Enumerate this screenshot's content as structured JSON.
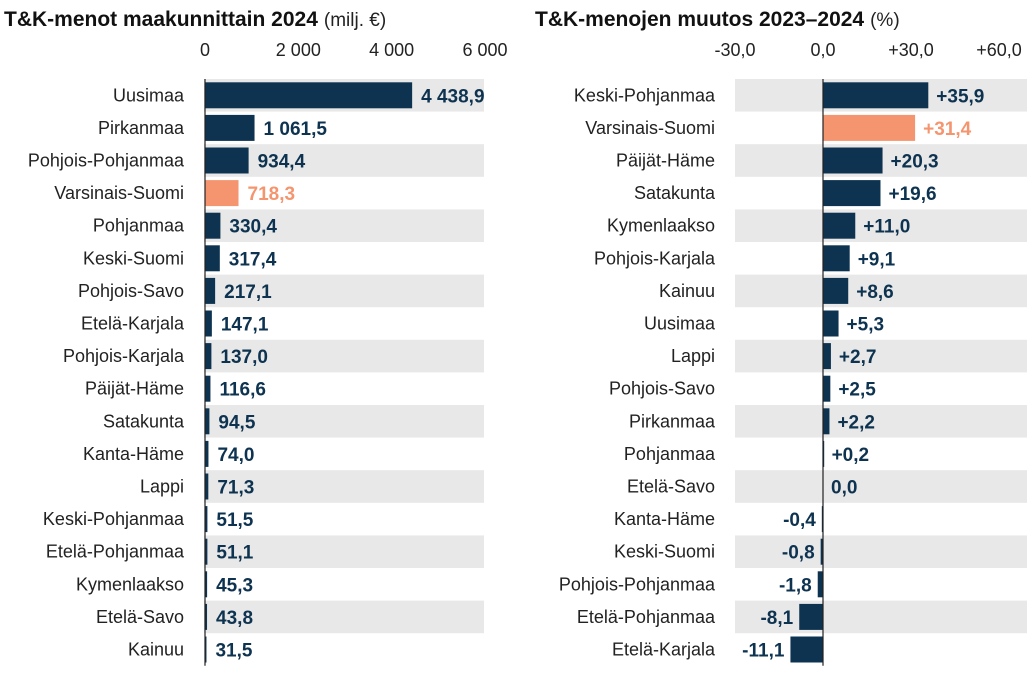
{
  "colors": {
    "bar": "#0e3350",
    "highlight": "#f4956f",
    "band": "#e8e8e8",
    "text": "#222222",
    "axis": "#222222"
  },
  "chart_data": [
    {
      "type": "bar",
      "orientation": "horizontal",
      "title": "T&K-menot maakunnittain 2024",
      "unit": "(milj. €)",
      "xlim": [
        0,
        6000
      ],
      "ticks": [
        0,
        2000,
        4000,
        6000
      ],
      "tick_labels": [
        "0",
        "2 000",
        "4 000",
        "6 000"
      ],
      "highlight": "Varsinais-Suomi",
      "categories": [
        "Uusimaa",
        "Pirkanmaa",
        "Pohjois-Pohjanmaa",
        "Varsinais-Suomi",
        "Pohjanmaa",
        "Keski-Suomi",
        "Pohjois-Savo",
        "Etelä-Karjala",
        "Pohjois-Karjala",
        "Päijät-Häme",
        "Satakunta",
        "Kanta-Häme",
        "Lappi",
        "Keski-Pohjanmaa",
        "Etelä-Pohjanmaa",
        "Kymenlaakso",
        "Etelä-Savo",
        "Kainuu"
      ],
      "values": [
        4438.9,
        1061.5,
        934.4,
        718.3,
        330.4,
        317.4,
        217.1,
        147.1,
        137.0,
        116.6,
        94.5,
        74.0,
        71.3,
        51.5,
        51.1,
        45.3,
        43.8,
        31.5
      ],
      "value_labels": [
        "4 438,9",
        "1 061,5",
        "934,4",
        "718,3",
        "330,4",
        "317,4",
        "217,1",
        "147,1",
        "137,0",
        "116,6",
        "94,5",
        "74,0",
        "71,3",
        "51,5",
        "51,1",
        "45,3",
        "43,8",
        "31,5"
      ]
    },
    {
      "type": "bar",
      "orientation": "horizontal",
      "title": "T&K-menojen muutos 2023–2024",
      "unit": "(%)",
      "xlim": [
        -30,
        60
      ],
      "ticks": [
        -30,
        0,
        30,
        60
      ],
      "tick_labels": [
        "-30,0",
        "0,0",
        "+30,0",
        "+60,0"
      ],
      "highlight": "Varsinais-Suomi",
      "categories": [
        "Keski-Pohjanmaa",
        "Varsinais-Suomi",
        "Päijät-Häme",
        "Satakunta",
        "Kymenlaakso",
        "Pohjois-Karjala",
        "Kainuu",
        "Uusimaa",
        "Lappi",
        "Pohjois-Savo",
        "Pirkanmaa",
        "Pohjanmaa",
        "Etelä-Savo",
        "Kanta-Häme",
        "Keski-Suomi",
        "Pohjois-Pohjanmaa",
        "Etelä-Pohjanmaa",
        "Etelä-Karjala"
      ],
      "values": [
        35.9,
        31.4,
        20.3,
        19.6,
        11.0,
        9.1,
        8.6,
        5.3,
        2.7,
        2.5,
        2.2,
        0.2,
        0.0,
        -0.4,
        -0.8,
        -1.8,
        -8.1,
        -11.1
      ],
      "value_labels": [
        "+35,9",
        "+31,4",
        "+20,3",
        "+19,6",
        "+11,0",
        "+9,1",
        "+8,6",
        "+5,3",
        "+2,7",
        "+2,5",
        "+2,2",
        "+0,2",
        "0,0",
        "-0,4",
        "-0,8",
        "-1,8",
        "-8,1",
        "-11,1"
      ]
    }
  ]
}
